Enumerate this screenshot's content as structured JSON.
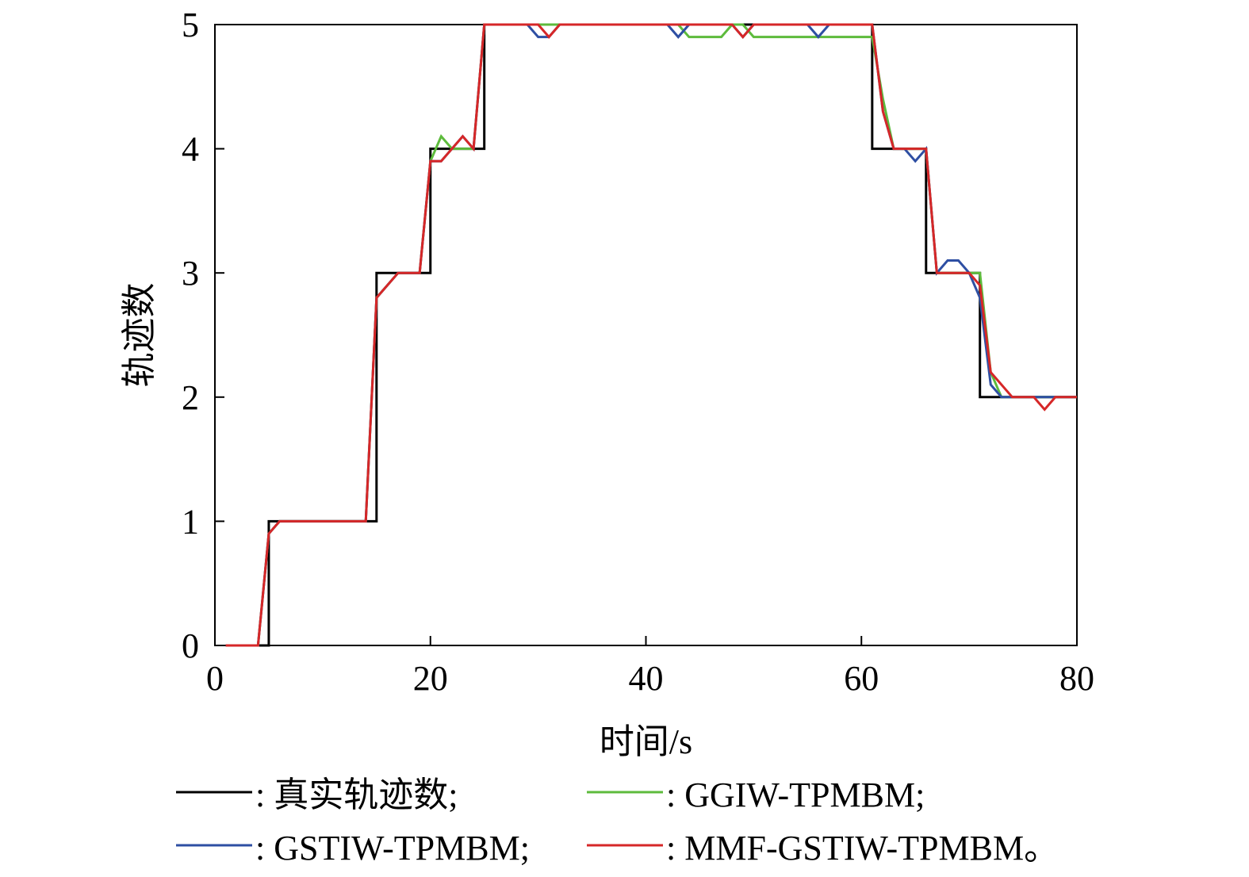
{
  "chart_data": {
    "type": "line",
    "xlabel": "时间/s",
    "ylabel": "轨迹数",
    "xlim": [
      0,
      80
    ],
    "ylim": [
      0,
      5
    ],
    "xticks": [
      "0",
      "20",
      "40",
      "60",
      "80"
    ],
    "yticks": [
      "0",
      "1",
      "2",
      "3",
      "4",
      "5"
    ],
    "grid": false,
    "legend_position": "bottom",
    "series": [
      {
        "name": "真实轨迹数",
        "legend_label": ": 真实轨迹数;",
        "color": "#000000",
        "x": [
          1,
          4,
          5,
          14,
          15,
          20,
          24,
          25,
          60,
          61,
          65,
          66,
          71,
          80
        ],
        "y": [
          0,
          0,
          1,
          1,
          3,
          4,
          4,
          5,
          5,
          4,
          4,
          3,
          2,
          2
        ],
        "step": true
      },
      {
        "name": "GGIW-TPMBM",
        "legend_label": ": GGIW-TPMBM;",
        "color": "#5dbb3c",
        "x": [
          1,
          4,
          5,
          6,
          14,
          15,
          17,
          19,
          20,
          21,
          22,
          24,
          25,
          43,
          44,
          47,
          48,
          49,
          50,
          61,
          62,
          63,
          65,
          66,
          67,
          71,
          72,
          73,
          74,
          80
        ],
        "y": [
          0,
          0,
          0.9,
          1,
          1,
          2.8,
          3,
          3,
          3.9,
          4.1,
          4,
          4,
          5,
          5,
          4.9,
          4.9,
          5,
          5,
          4.9,
          4.9,
          4.4,
          4,
          4,
          4,
          3,
          3,
          2.2,
          2,
          2,
          2
        ]
      },
      {
        "name": "GSTIW-TPMBM",
        "legend_label": ": GSTIW-TPMBM;",
        "color": "#2e4fa3",
        "x": [
          1,
          4,
          5,
          6,
          14,
          15,
          17,
          19,
          20,
          21,
          23,
          24,
          25,
          29,
          30,
          31,
          32,
          42,
          43,
          44,
          48,
          49,
          50,
          55,
          56,
          57,
          61,
          62,
          63,
          64,
          65,
          66,
          67,
          68,
          69,
          70,
          71,
          72,
          73,
          74,
          80
        ],
        "y": [
          0,
          0,
          0.9,
          1,
          1,
          2.8,
          3,
          3,
          3.9,
          3.9,
          4.1,
          4,
          5,
          5,
          4.9,
          4.9,
          5,
          5,
          4.9,
          5,
          5,
          4.9,
          5,
          5,
          4.9,
          5,
          5,
          4.3,
          4,
          4,
          3.9,
          4,
          3,
          3.1,
          3.1,
          3,
          2.8,
          2.1,
          2,
          2,
          2
        ]
      },
      {
        "name": "MMF-GSTIW-TPMBM",
        "legend_label": ": MMF-GSTIW-TPMBM。",
        "color": "#d62728",
        "x": [
          1,
          4,
          5,
          6,
          14,
          15,
          17,
          19,
          20,
          21,
          23,
          24,
          25,
          30,
          31,
          32,
          48,
          49,
          50,
          61,
          62,
          63,
          65,
          66,
          67,
          70,
          71,
          72,
          73,
          74,
          76,
          77,
          78,
          80
        ],
        "y": [
          0,
          0,
          0.9,
          1,
          1,
          2.8,
          3,
          3,
          3.9,
          3.9,
          4.1,
          4,
          5,
          5,
          4.9,
          5,
          5,
          4.9,
          5,
          5,
          4.3,
          4,
          4,
          4,
          3,
          3,
          2.9,
          2.2,
          2.1,
          2,
          2,
          1.9,
          2,
          2
        ]
      }
    ]
  }
}
